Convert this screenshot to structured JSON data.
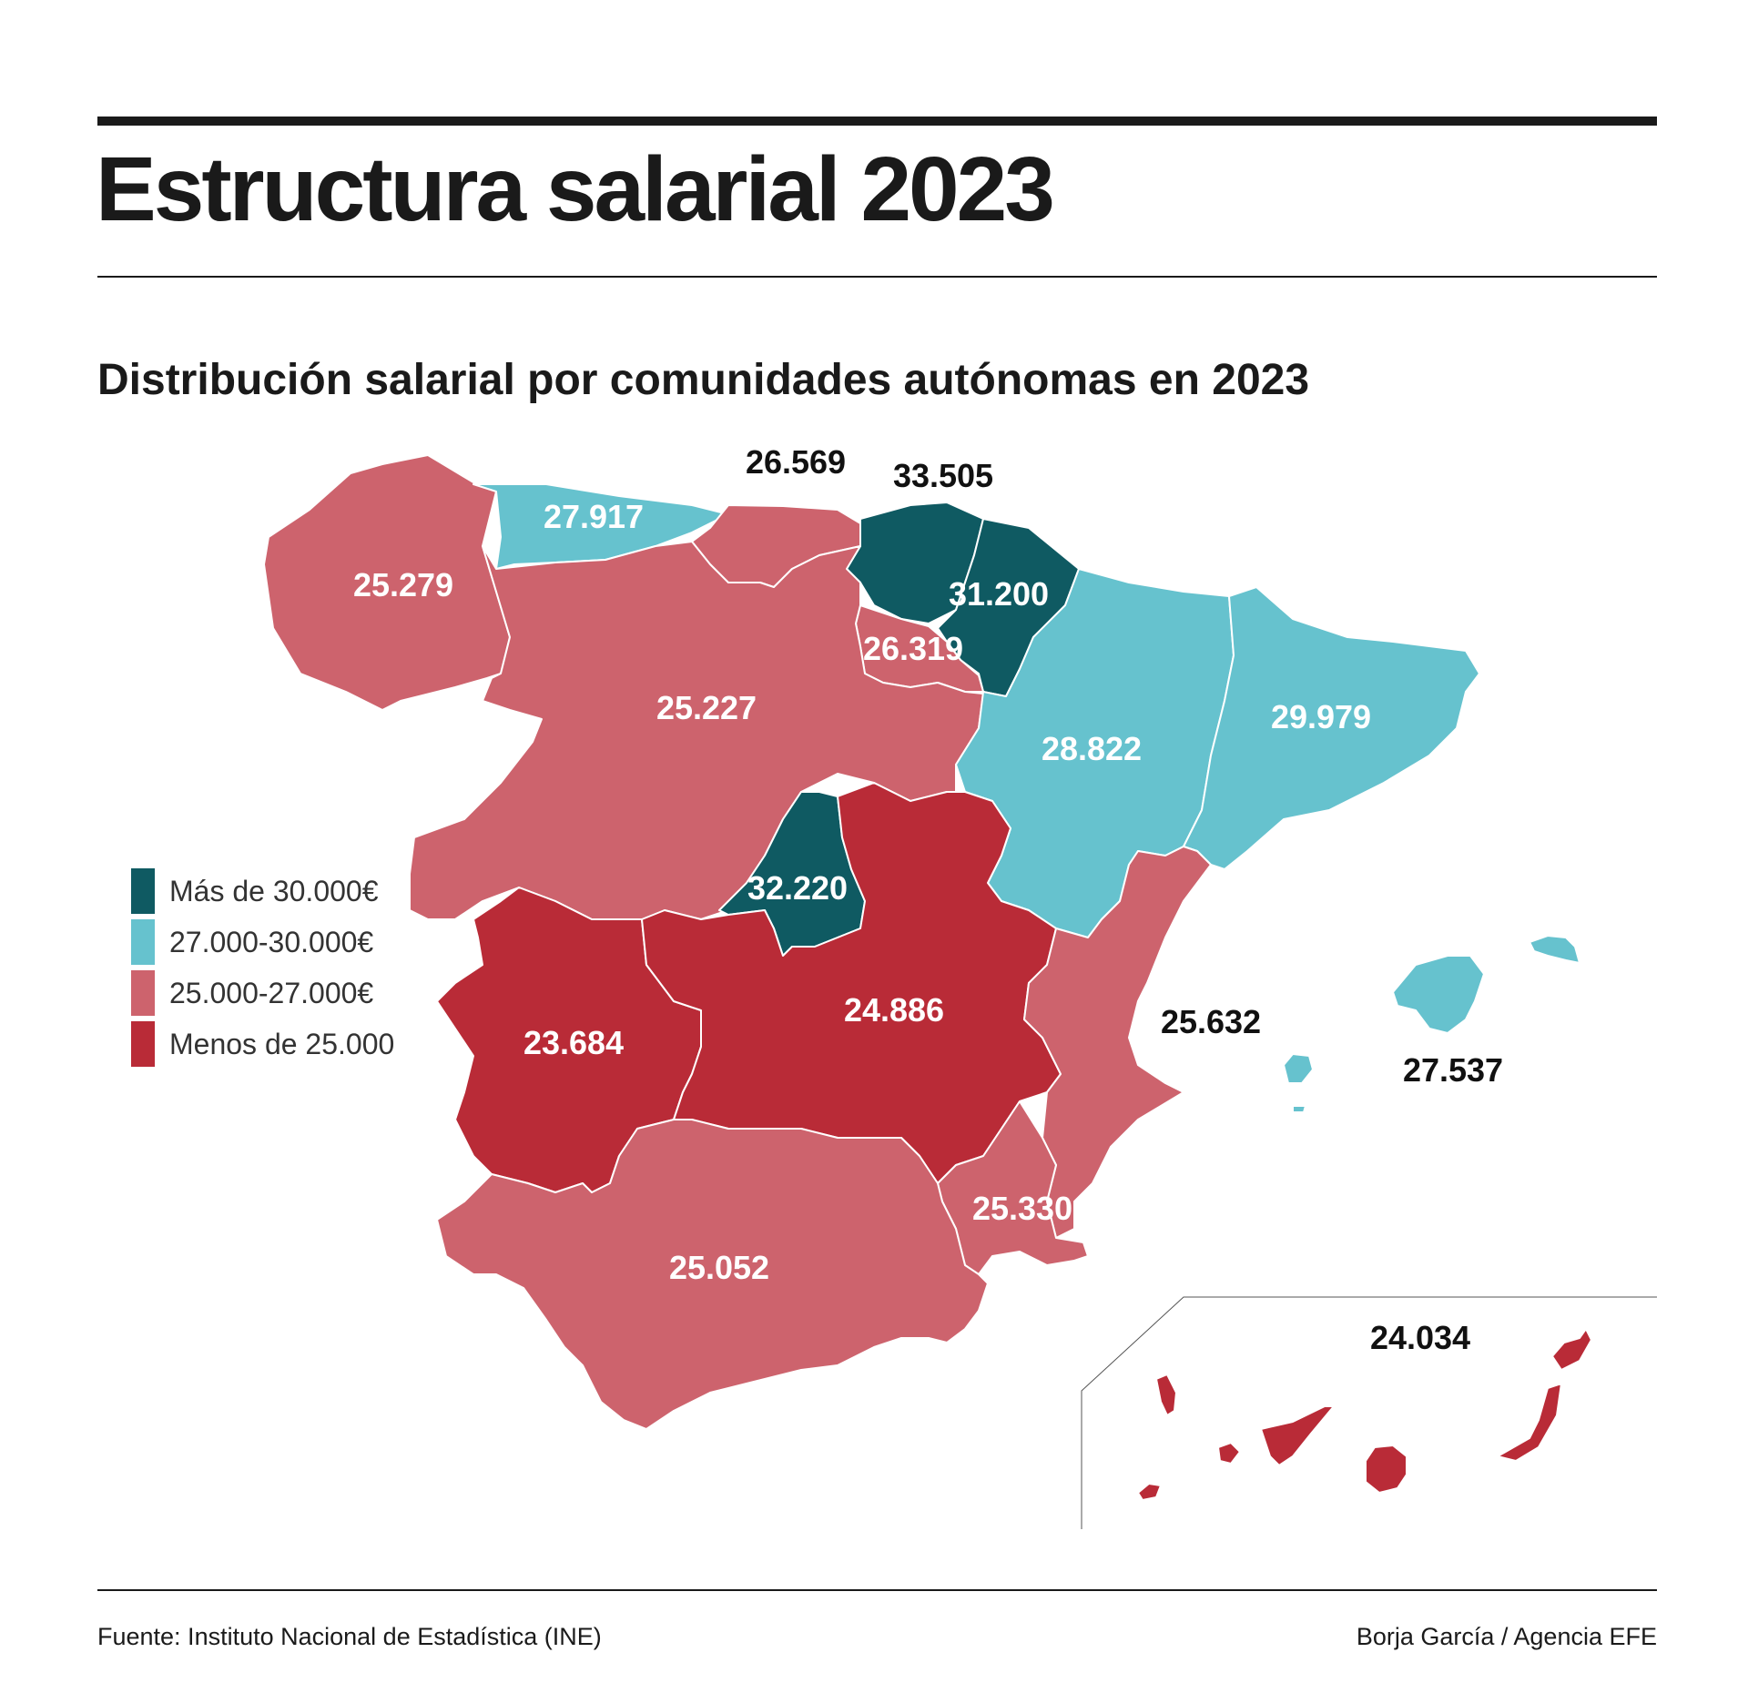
{
  "title": "Estructura salarial 2023",
  "subtitle": "Distribución salarial por comunidades autónomas en 2023",
  "colors": {
    "mas_30000": "#0f5a62",
    "de_27000_30000": "#66c2ce",
    "de_25000_27000": "#cd636d",
    "menos_25000": "#b92b37"
  },
  "legend": [
    {
      "label": "Más de 30.000€",
      "color": "#0f5a62"
    },
    {
      "label": "27.000-30.000€",
      "color": "#66c2ce"
    },
    {
      "label": "25.000-27.000€",
      "color": "#cd636d"
    },
    {
      "label": "Menos de 25.000",
      "color": "#b92b37"
    }
  ],
  "regions": [
    {
      "id": "galicia",
      "value": "25.279",
      "category": "de_25000_27000"
    },
    {
      "id": "asturias",
      "value": "27.917",
      "category": "de_27000_30000"
    },
    {
      "id": "cantabria",
      "value": "26.569",
      "category": "de_25000_27000"
    },
    {
      "id": "pais-vasco",
      "value": "33.505",
      "category": "mas_30000"
    },
    {
      "id": "navarra",
      "value": "31.200",
      "category": "mas_30000"
    },
    {
      "id": "la-rioja",
      "value": "26.319",
      "category": "de_25000_27000"
    },
    {
      "id": "castilla-y-leon",
      "value": "25.227",
      "category": "de_25000_27000"
    },
    {
      "id": "aragon",
      "value": "28.822",
      "category": "de_27000_30000"
    },
    {
      "id": "cataluna",
      "value": "29.979",
      "category": "de_27000_30000"
    },
    {
      "id": "madrid",
      "value": "32.220",
      "category": "mas_30000"
    },
    {
      "id": "extremadura",
      "value": "23.684",
      "category": "menos_25000"
    },
    {
      "id": "castilla-la-mancha",
      "value": "24.886",
      "category": "menos_25000"
    },
    {
      "id": "comunidad-valenciana",
      "value": "25.632",
      "category": "de_25000_27000"
    },
    {
      "id": "baleares",
      "value": "27.537",
      "category": "de_27000_30000"
    },
    {
      "id": "murcia",
      "value": "25.330",
      "category": "de_25000_27000"
    },
    {
      "id": "andalucia",
      "value": "25.052",
      "category": "de_25000_27000"
    },
    {
      "id": "canarias",
      "value": "24.034",
      "category": "menos_25000"
    }
  ],
  "source": "Fuente: Instituto Nacional de Estadística (INE)",
  "credit": "Borja García / Agencia EFE"
}
